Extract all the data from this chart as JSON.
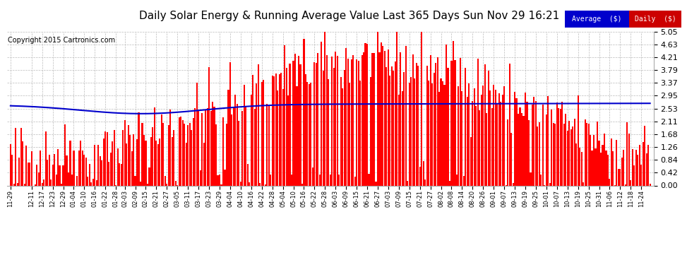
{
  "title": "Daily Solar Energy & Running Average Value Last 365 Days Sun Nov 29 16:21",
  "copyright": "Copyright 2015 Cartronics.com",
  "ylim": [
    0.0,
    5.05
  ],
  "yticks": [
    0.0,
    0.42,
    0.84,
    1.26,
    1.68,
    2.11,
    2.53,
    2.95,
    3.37,
    3.79,
    4.21,
    4.63,
    5.05
  ],
  "bar_color": "#ff0000",
  "avg_line_color": "#0000cc",
  "background_color": "#ffffff",
  "legend_avg_bg": "#0000cc",
  "legend_daily_bg": "#cc0000",
  "legend_text_color": "#ffffff",
  "title_fontsize": 11,
  "copyright_fontsize": 7,
  "num_bars": 365,
  "seed": 42,
  "xtick_labels": [
    "11-29",
    "12-11",
    "12-17",
    "12-23",
    "12-29",
    "01-04",
    "01-10",
    "01-16",
    "01-22",
    "01-28",
    "02-03",
    "02-09",
    "02-15",
    "02-21",
    "02-27",
    "03-05",
    "03-11",
    "03-17",
    "03-23",
    "03-29",
    "04-04",
    "04-10",
    "04-16",
    "04-22",
    "04-28",
    "05-04",
    "05-10",
    "05-16",
    "05-22",
    "05-28",
    "06-03",
    "06-09",
    "06-15",
    "06-21",
    "06-27",
    "07-03",
    "07-09",
    "07-15",
    "07-21",
    "07-27",
    "08-02",
    "08-08",
    "08-14",
    "08-20",
    "08-26",
    "09-01",
    "09-07",
    "09-13",
    "09-19",
    "09-25",
    "10-01",
    "10-07",
    "10-13",
    "10-19",
    "10-25",
    "10-31",
    "11-06",
    "11-12",
    "11-18",
    "11-24"
  ],
  "tick_positions": [
    0,
    12,
    18,
    24,
    30,
    36,
    42,
    48,
    54,
    60,
    65,
    71,
    77,
    83,
    89,
    95,
    101,
    107,
    113,
    119,
    125,
    131,
    137,
    143,
    149,
    155,
    161,
    167,
    173,
    179,
    185,
    191,
    197,
    203,
    209,
    215,
    221,
    227,
    233,
    239,
    245,
    251,
    257,
    263,
    269,
    275,
    281,
    287,
    293,
    299,
    305,
    311,
    317,
    323,
    329,
    335,
    341,
    347,
    353,
    359
  ]
}
